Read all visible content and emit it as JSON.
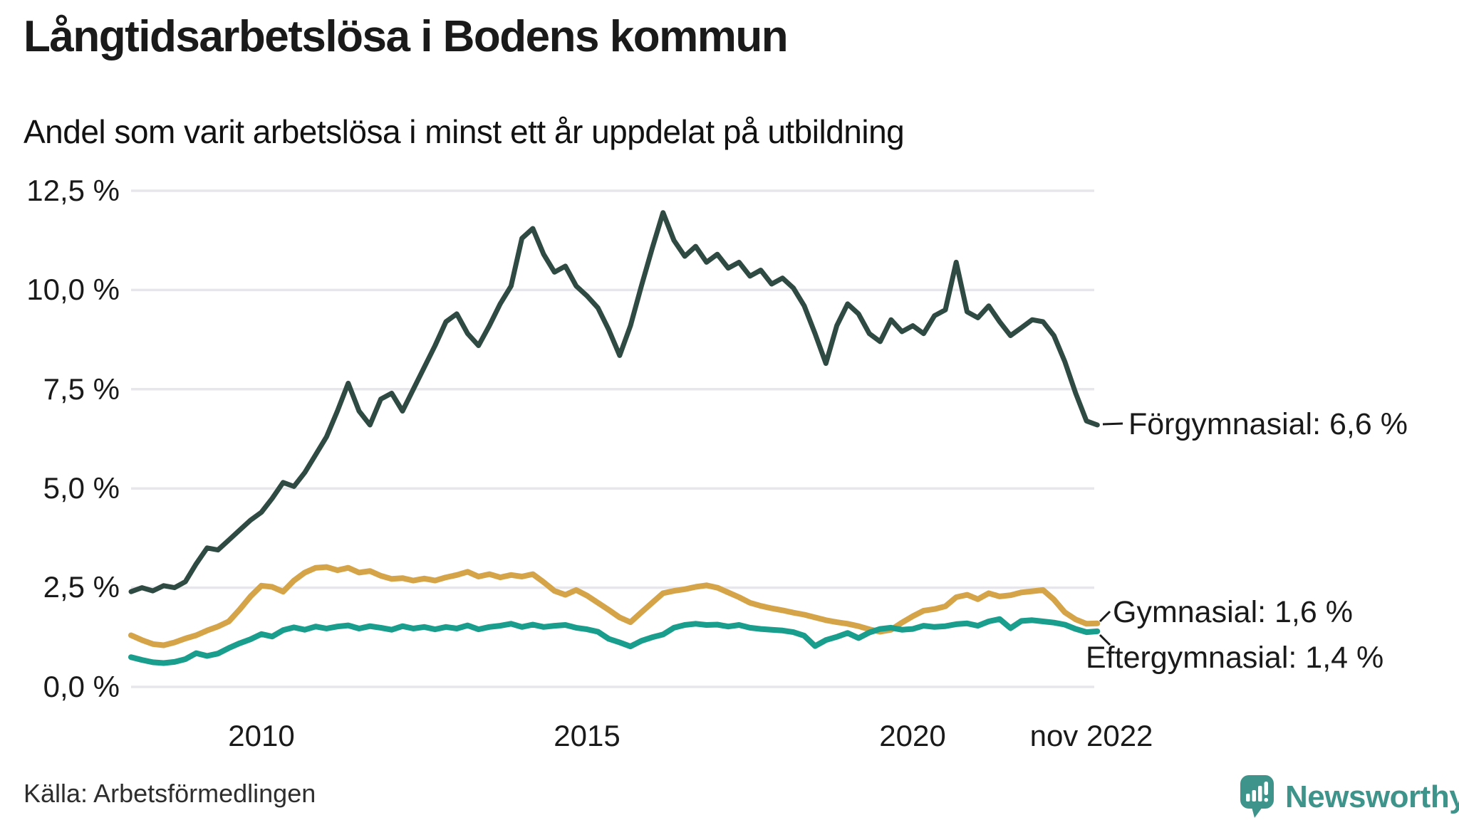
{
  "chart_data": {
    "type": "line",
    "title": "Långtidsarbetslösa i Bodens kommun",
    "subtitle": "Andel som varit arbetslösa i minst ett år uppdelat på utbildning",
    "grid": "horizontal",
    "legend": "end-labels",
    "ylim": [
      0,
      12.5
    ],
    "x_range": [
      2008.0,
      2022.83
    ],
    "y_ticks": [
      {
        "value": 12.5,
        "label": "12,5 %"
      },
      {
        "value": 10.0,
        "label": "10,0 %"
      },
      {
        "value": 7.5,
        "label": "7,5 %"
      },
      {
        "value": 5.0,
        "label": "5,0 %"
      },
      {
        "value": 2.5,
        "label": "2,5 %"
      },
      {
        "value": 0.0,
        "label": "0,0 %"
      }
    ],
    "x_ticks": [
      {
        "value": 2010,
        "label": "2010"
      },
      {
        "value": 2015,
        "label": "2015"
      },
      {
        "value": 2020,
        "label": "2020"
      },
      {
        "value": 2022.75,
        "label": "nov 2022"
      }
    ],
    "series": [
      {
        "name": "Förgymnasial",
        "end_label": "Förgymnasial: 6,6 %",
        "end_value": "6,6 %",
        "color": "#2e4a42",
        "stroke_width": 7,
        "x_start": 2008.0,
        "x_step": 0.16667,
        "values": [
          2.4,
          2.5,
          2.42,
          2.55,
          2.5,
          2.65,
          3.1,
          3.5,
          3.45,
          3.7,
          3.95,
          4.2,
          4.4,
          4.75,
          5.15,
          5.05,
          5.4,
          5.85,
          6.3,
          6.95,
          7.65,
          6.95,
          6.6,
          7.25,
          7.4,
          6.95,
          7.5,
          8.05,
          8.6,
          9.2,
          9.4,
          8.9,
          8.6,
          9.1,
          9.65,
          10.1,
          11.3,
          11.55,
          10.9,
          10.45,
          10.6,
          10.1,
          9.85,
          9.55,
          9.0,
          8.35,
          9.1,
          10.1,
          11.05,
          11.95,
          11.25,
          10.85,
          11.1,
          10.7,
          10.9,
          10.55,
          10.7,
          10.35,
          10.5,
          10.15,
          10.3,
          10.05,
          9.6,
          8.9,
          8.15,
          9.1,
          9.65,
          9.4,
          8.9,
          8.7,
          9.25,
          8.95,
          9.1,
          8.9,
          9.35,
          9.5,
          10.7,
          9.45,
          9.3,
          9.6,
          9.2,
          8.85,
          9.05,
          9.25,
          9.2,
          8.85,
          8.2,
          7.4,
          6.7,
          6.6
        ]
      },
      {
        "name": "Gymnasial",
        "end_label": "Gymnasial: 1,6 %",
        "end_value": "1,6 %",
        "color": "#d5a449",
        "stroke_width": 8,
        "x_start": 2008.0,
        "x_step": 0.16667,
        "values": [
          1.3,
          1.18,
          1.08,
          1.05,
          1.12,
          1.22,
          1.3,
          1.42,
          1.52,
          1.65,
          1.95,
          2.28,
          2.55,
          2.52,
          2.4,
          2.68,
          2.88,
          3.0,
          3.02,
          2.94,
          3.0,
          2.88,
          2.92,
          2.8,
          2.72,
          2.74,
          2.68,
          2.73,
          2.68,
          2.76,
          2.82,
          2.9,
          2.78,
          2.84,
          2.76,
          2.82,
          2.78,
          2.84,
          2.64,
          2.42,
          2.32,
          2.44,
          2.3,
          2.12,
          1.94,
          1.75,
          1.63,
          1.88,
          2.12,
          2.36,
          2.42,
          2.46,
          2.52,
          2.56,
          2.5,
          2.38,
          2.26,
          2.12,
          2.04,
          1.98,
          1.93,
          1.87,
          1.82,
          1.75,
          1.68,
          1.63,
          1.59,
          1.53,
          1.45,
          1.39,
          1.44,
          1.62,
          1.78,
          1.92,
          1.96,
          2.03,
          2.26,
          2.32,
          2.21,
          2.36,
          2.28,
          2.31,
          2.38,
          2.41,
          2.44,
          2.2,
          1.88,
          1.7,
          1.59,
          1.6
        ]
      },
      {
        "name": "Eftergymnasial",
        "end_label": "Eftergymnasial: 1,4 %",
        "end_value": "1,4 %",
        "color": "#199d8d",
        "stroke_width": 8,
        "x_start": 2008.0,
        "x_step": 0.16667,
        "values": [
          0.75,
          0.68,
          0.62,
          0.6,
          0.63,
          0.7,
          0.85,
          0.78,
          0.84,
          0.98,
          1.1,
          1.2,
          1.33,
          1.27,
          1.43,
          1.5,
          1.44,
          1.52,
          1.47,
          1.52,
          1.55,
          1.47,
          1.53,
          1.49,
          1.44,
          1.53,
          1.47,
          1.51,
          1.45,
          1.51,
          1.47,
          1.55,
          1.45,
          1.51,
          1.54,
          1.59,
          1.51,
          1.57,
          1.51,
          1.54,
          1.56,
          1.49,
          1.45,
          1.39,
          1.21,
          1.12,
          1.02,
          1.16,
          1.25,
          1.32,
          1.49,
          1.56,
          1.59,
          1.56,
          1.57,
          1.52,
          1.56,
          1.49,
          1.46,
          1.44,
          1.42,
          1.38,
          1.29,
          1.03,
          1.18,
          1.26,
          1.36,
          1.23,
          1.37,
          1.46,
          1.49,
          1.44,
          1.46,
          1.54,
          1.51,
          1.53,
          1.58,
          1.6,
          1.54,
          1.65,
          1.71,
          1.48,
          1.66,
          1.68,
          1.65,
          1.62,
          1.57,
          1.46,
          1.38,
          1.4
        ]
      }
    ],
    "colors": {
      "gridline": "#e7e7eb",
      "text": "#1a1a1a",
      "brand_teal": "#3e948a"
    }
  },
  "footer": {
    "source": "Källa: Arbetsförmedlingen",
    "brand": "Newsworthy"
  }
}
